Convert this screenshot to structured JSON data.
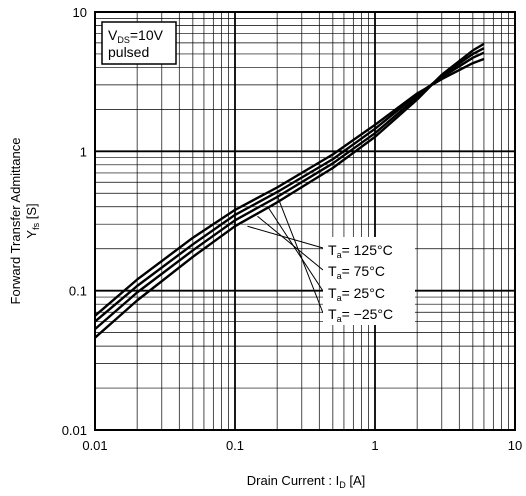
{
  "chart_data": {
    "type": "line",
    "x_scale": "log",
    "y_scale": "log",
    "xlim": [
      0.01,
      10
    ],
    "ylim": [
      0.01,
      10
    ],
    "grid": true,
    "xlabel": {
      "main": "Drain Current :  I",
      "sub": "D",
      "unit": " [A]"
    },
    "ylabel": {
      "line1": "Forward Transfer Admittance",
      "main": "Y",
      "sub": "fs",
      "unit": " [S]"
    },
    "x_ticks": [
      {
        "value": 0.01,
        "label": "0.01"
      },
      {
        "value": 0.1,
        "label": "0.1"
      },
      {
        "value": 1,
        "label": "1"
      },
      {
        "value": 10,
        "label": "10"
      }
    ],
    "y_ticks": [
      {
        "value": 0.01,
        "label": "0.01"
      },
      {
        "value": 0.1,
        "label": "0.1"
      },
      {
        "value": 1,
        "label": "1"
      },
      {
        "value": 10,
        "label": "10"
      }
    ],
    "condition_box": {
      "vds_main": "V",
      "vds_sub": "DS",
      "vds_val": "=10V",
      "mode": "pulsed"
    },
    "annotation_anchor": [
      0.14,
      0.32
    ],
    "series": [
      {
        "name": "125°C",
        "label_main": "T",
        "label_sub": "a",
        "label_val": "= 125°C",
        "x": [
          0.01,
          0.02,
          0.05,
          0.1,
          0.2,
          0.5,
          1,
          2,
          3,
          5,
          6
        ],
        "y": [
          0.066,
          0.12,
          0.24,
          0.38,
          0.55,
          0.95,
          1.55,
          2.6,
          3.3,
          4.3,
          4.6
        ]
      },
      {
        "name": "75°C",
        "label_main": "T",
        "label_sub": "a",
        "label_val": "= 75°C",
        "x": [
          0.01,
          0.02,
          0.05,
          0.1,
          0.2,
          0.5,
          1,
          2,
          3,
          5,
          6
        ],
        "y": [
          0.06,
          0.108,
          0.215,
          0.35,
          0.51,
          0.88,
          1.45,
          2.55,
          3.4,
          4.7,
          5.1
        ]
      },
      {
        "name": "25°C",
        "label_main": "T",
        "label_sub": "a",
        "label_val": "= 25°C",
        "x": [
          0.01,
          0.02,
          0.05,
          0.1,
          0.2,
          0.5,
          1,
          2,
          3,
          5,
          6
        ],
        "y": [
          0.053,
          0.097,
          0.195,
          0.32,
          0.47,
          0.82,
          1.35,
          2.45,
          3.5,
          5.0,
          5.5
        ]
      },
      {
        "name": "-25°C",
        "label_main": "T",
        "label_sub": "a",
        "label_val": "= −25°C",
        "x": [
          0.01,
          0.02,
          0.05,
          0.1,
          0.2,
          0.5,
          1,
          2,
          3,
          5,
          6
        ],
        "y": [
          0.046,
          0.085,
          0.175,
          0.29,
          0.43,
          0.76,
          1.27,
          2.35,
          3.55,
          5.3,
          5.9
        ]
      }
    ]
  }
}
